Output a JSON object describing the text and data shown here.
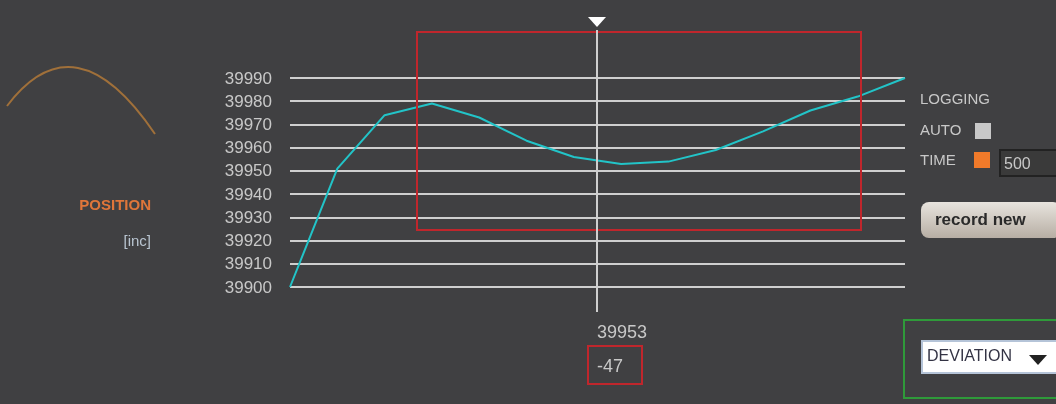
{
  "chart_data": {
    "type": "line",
    "ylabel": "POSITION",
    "categories": [
      null,
      null,
      null,
      null,
      null,
      null,
      null,
      null,
      null,
      null,
      null,
      null,
      null,
      null
    ],
    "series": [
      {
        "color": "#22c4c8",
        "values": [
          39900,
          39951,
          39974,
          39979,
          39973,
          39963,
          39956,
          39953,
          39954,
          39959,
          39967,
          39976,
          39982,
          39990
        ]
      }
    ],
    "ylim": [
      39900,
      39990
    ],
    "yticks": [
      39900,
      39910,
      39920,
      39930,
      39940,
      39950,
      39960,
      39970,
      39980,
      39990
    ],
    "grid": "y",
    "marker": "none",
    "line_style": "solid",
    "annotations": [
      "[inc]",
      "LOGGING",
      "AUTO",
      "TIME",
      "500",
      "record new",
      "DEVIATION",
      "39953",
      "-47"
    ]
  }
}
